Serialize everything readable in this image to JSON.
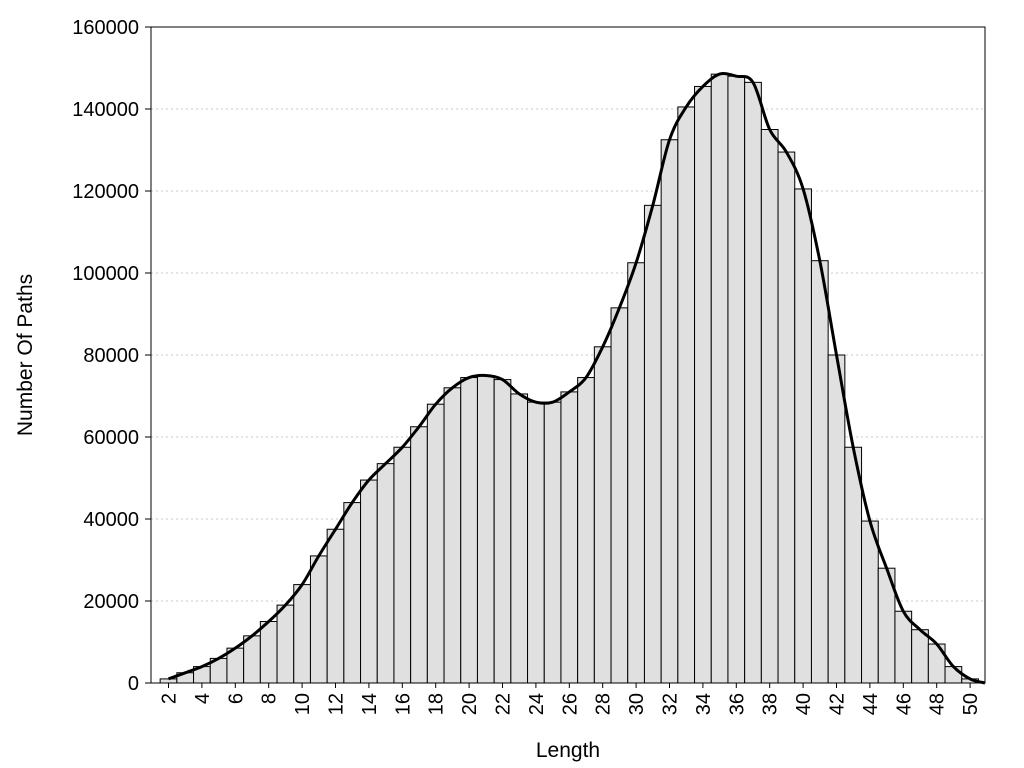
{
  "chart_data": {
    "type": "bar",
    "title": "",
    "xlabel": "Length",
    "ylabel": "Number Of Paths",
    "ylim": [
      0,
      160000
    ],
    "yticks": [
      0,
      20000,
      40000,
      60000,
      80000,
      100000,
      120000,
      140000,
      160000
    ],
    "xticks": [
      2,
      4,
      6,
      8,
      10,
      12,
      14,
      16,
      18,
      20,
      22,
      24,
      26,
      28,
      30,
      32,
      34,
      36,
      38,
      40,
      42,
      44,
      46,
      48,
      50
    ],
    "x": [
      2,
      3,
      4,
      5,
      6,
      7,
      8,
      9,
      10,
      11,
      12,
      13,
      14,
      15,
      16,
      17,
      18,
      19,
      20,
      21,
      22,
      23,
      24,
      25,
      26,
      27,
      28,
      29,
      30,
      31,
      32,
      33,
      34,
      35,
      36,
      37,
      38,
      39,
      40,
      41,
      42,
      43,
      44,
      45,
      46,
      47,
      48,
      49,
      50
    ],
    "values": [
      1000,
      2500,
      4000,
      6000,
      8500,
      11500,
      15000,
      19000,
      24000,
      31000,
      37500,
      44000,
      49500,
      53500,
      57500,
      62500,
      68000,
      72000,
      74500,
      75000,
      74000,
      70500,
      68500,
      68500,
      71000,
      74500,
      82000,
      91500,
      102500,
      116500,
      132500,
      140500,
      145500,
      148500,
      148000,
      146500,
      135000,
      129500,
      120500,
      103000,
      80000,
      57500,
      39500,
      28000,
      17500,
      13000,
      9500,
      4000,
      1000
    ],
    "smooth_curve": true,
    "grid": "horizontal dotted",
    "colors": {
      "bar_fill": "#e0e0e0",
      "bar_stroke": "#000000",
      "curve": "#000000",
      "grid": "#c8c8c8"
    }
  }
}
